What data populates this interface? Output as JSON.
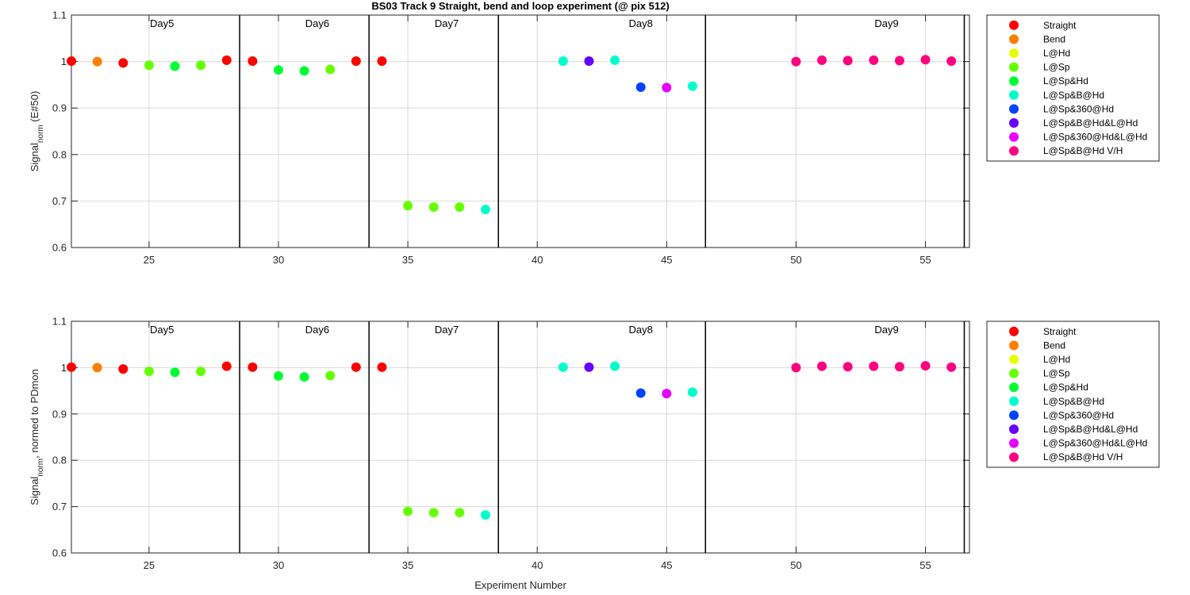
{
  "figure": {
    "title": "BS03 Track 9  Straight, bend and loop experiment (@ pix 512)",
    "xlabel": "Experiment Number"
  },
  "legend_entries": [
    {
      "label": "Straight",
      "color": "#FF0000"
    },
    {
      "label": "Bend",
      "color": "#FF8000"
    },
    {
      "label": "L@Hd",
      "color": "#E6FF00"
    },
    {
      "label": "L@Sp",
      "color": "#66FF00"
    },
    {
      "label": "L@Sp&Hd",
      "color": "#00FF33"
    },
    {
      "label": "L@Sp&B@Hd",
      "color": "#00FFCC"
    },
    {
      "label": "L@Sp&360@Hd",
      "color": "#0044FF"
    },
    {
      "label": "L@Sp&B@Hd&L@Hd",
      "color": "#6600FF"
    },
    {
      "label": "L@Sp&360@Hd&L@Hd",
      "color": "#E600FF"
    },
    {
      "label": "L@Sp&B@Hd V/H",
      "color": "#FF0080"
    }
  ],
  "chart_data": [
    {
      "type": "scatter",
      "ylabel_main": "Signal",
      "ylabel_sub": "norm",
      "ylabel_suffix": " (E#50)",
      "xlim": [
        22,
        56.7
      ],
      "ylim": [
        0.6,
        1.1
      ],
      "xticks": [
        "25",
        "30",
        "35",
        "40",
        "45",
        "50",
        "55"
      ],
      "yticks": [
        "0.6",
        "0.7",
        "0.8",
        "0.9",
        "1",
        "1.1"
      ],
      "grid": true,
      "legend_position": "outside-right",
      "day_dividers": [
        28.5,
        33.5,
        38.5,
        46.5,
        56.5
      ],
      "day_labels": [
        {
          "text": "Day5",
          "x": 25.5
        },
        {
          "text": "Day6",
          "x": 31.5
        },
        {
          "text": "Day7",
          "x": 36.5
        },
        {
          "text": "Day8",
          "x": 44
        },
        {
          "text": "Day9",
          "x": 53.5
        }
      ],
      "series": [
        {
          "name": "Straight",
          "x": [
            22,
            24,
            28,
            29,
            33,
            34
          ],
          "y": [
            1.001,
            0.997,
            1.003,
            1.001,
            1.001,
            1.001
          ]
        },
        {
          "name": "Bend",
          "x": [
            23
          ],
          "y": [
            1.0
          ]
        },
        {
          "name": "L@Hd",
          "x": [],
          "y": []
        },
        {
          "name": "L@Sp",
          "x": [
            25,
            27,
            32,
            35,
            36,
            37
          ],
          "y": [
            0.992,
            0.992,
            0.983,
            0.69,
            0.687,
            0.687
          ]
        },
        {
          "name": "L@Sp&Hd",
          "x": [
            26,
            30,
            31
          ],
          "y": [
            0.99,
            0.982,
            0.98
          ]
        },
        {
          "name": "L@Sp&B@Hd",
          "x": [
            38,
            41,
            43,
            46
          ],
          "y": [
            0.682,
            1.001,
            1.003,
            0.947
          ]
        },
        {
          "name": "L@Sp&360@Hd",
          "x": [
            44
          ],
          "y": [
            0.945
          ]
        },
        {
          "name": "L@Sp&B@Hd&L@Hd",
          "x": [
            42
          ],
          "y": [
            1.001
          ]
        },
        {
          "name": "L@Sp&360@Hd&L@Hd",
          "x": [
            45
          ],
          "y": [
            0.944
          ]
        },
        {
          "name": "L@Sp&B@Hd V/H",
          "x": [
            50,
            51,
            52,
            53,
            54,
            55,
            56
          ],
          "y": [
            1.0,
            1.003,
            1.002,
            1.003,
            1.002,
            1.004,
            1.001
          ]
        }
      ]
    },
    {
      "type": "scatter",
      "ylabel_main": "Signal",
      "ylabel_sub": "norm",
      "ylabel_suffix": ", normed to PDmon",
      "xlim": [
        22,
        56.7
      ],
      "ylim": [
        0.6,
        1.1
      ],
      "xticks": [
        "25",
        "30",
        "35",
        "40",
        "45",
        "50",
        "55"
      ],
      "yticks": [
        "0.6",
        "0.7",
        "0.8",
        "0.9",
        "1",
        "1.1"
      ],
      "grid": true,
      "legend_position": "outside-right",
      "day_dividers": [
        28.5,
        33.5,
        38.5,
        46.5,
        56.5
      ],
      "day_labels": [
        {
          "text": "Day5",
          "x": 25.5
        },
        {
          "text": "Day6",
          "x": 31.5
        },
        {
          "text": "Day7",
          "x": 36.5
        },
        {
          "text": "Day8",
          "x": 44
        },
        {
          "text": "Day9",
          "x": 53.5
        }
      ],
      "series": [
        {
          "name": "Straight",
          "x": [
            22,
            24,
            28,
            29,
            33,
            34
          ],
          "y": [
            1.001,
            0.997,
            1.003,
            1.001,
            1.001,
            1.001
          ]
        },
        {
          "name": "Bend",
          "x": [
            23
          ],
          "y": [
            1.0
          ]
        },
        {
          "name": "L@Hd",
          "x": [],
          "y": []
        },
        {
          "name": "L@Sp",
          "x": [
            25,
            27,
            32,
            35,
            36,
            37
          ],
          "y": [
            0.992,
            0.992,
            0.983,
            0.69,
            0.687,
            0.687
          ]
        },
        {
          "name": "L@Sp&Hd",
          "x": [
            26,
            30,
            31
          ],
          "y": [
            0.99,
            0.982,
            0.98
          ]
        },
        {
          "name": "L@Sp&B@Hd",
          "x": [
            38,
            41,
            43,
            46
          ],
          "y": [
            0.682,
            1.001,
            1.003,
            0.947
          ]
        },
        {
          "name": "L@Sp&360@Hd",
          "x": [
            44
          ],
          "y": [
            0.945
          ]
        },
        {
          "name": "L@Sp&B@Hd&L@Hd",
          "x": [
            42
          ],
          "y": [
            1.001
          ]
        },
        {
          "name": "L@Sp&360@Hd&L@Hd",
          "x": [
            45
          ],
          "y": [
            0.944
          ]
        },
        {
          "name": "L@Sp&B@Hd V/H",
          "x": [
            50,
            51,
            52,
            53,
            54,
            55,
            56
          ],
          "y": [
            1.0,
            1.003,
            1.002,
            1.003,
            1.002,
            1.004,
            1.001
          ]
        }
      ]
    }
  ]
}
